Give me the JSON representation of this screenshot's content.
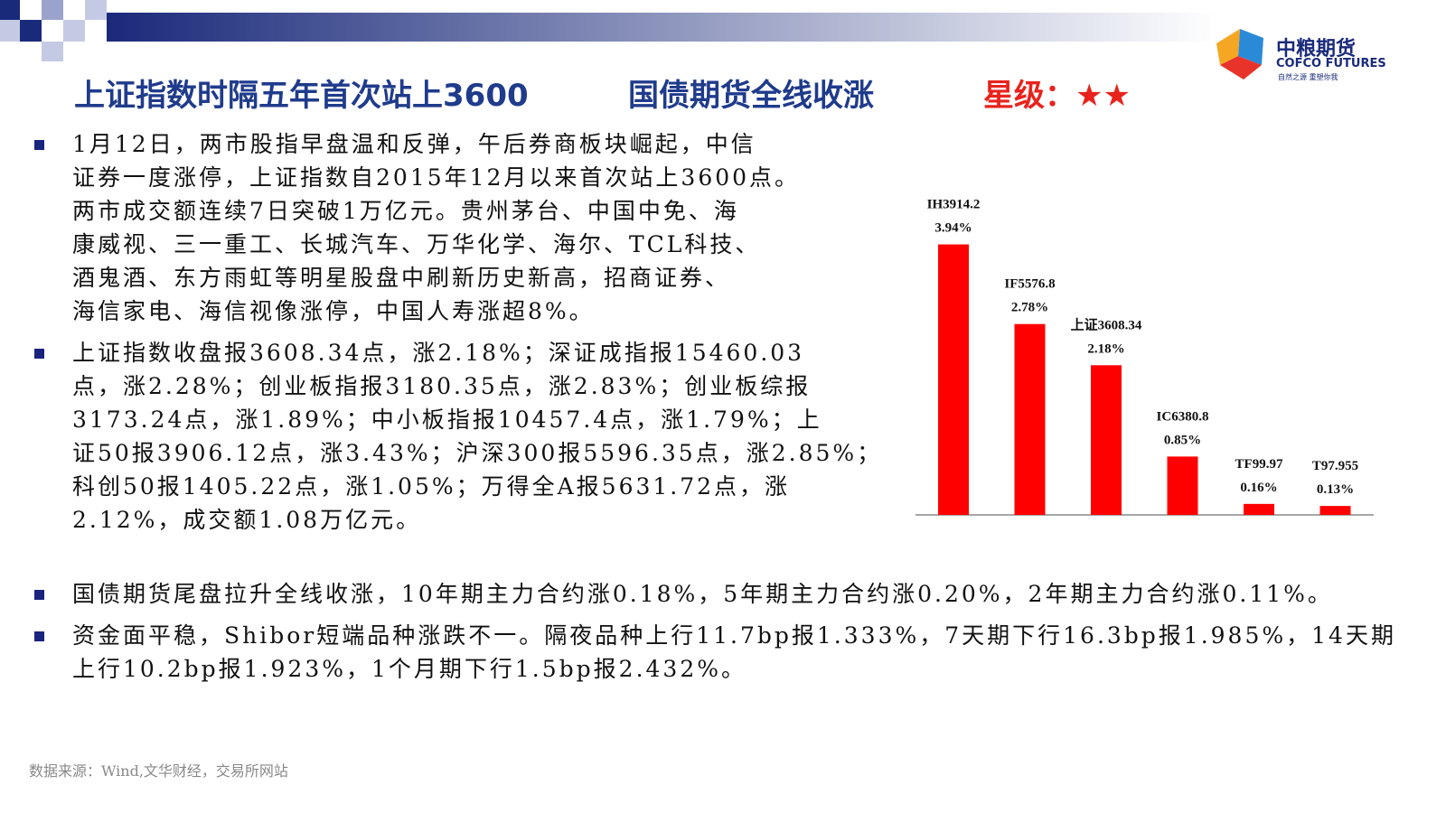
{
  "header": {
    "title_parts": [
      "上证指数时隔五年首次站上3600",
      "国债期货全线收涨",
      "星级：★★"
    ],
    "logo": {
      "name": "中粮期货",
      "english": "COFCO FUTURES",
      "tagline": "自然之源 重塑你我"
    }
  },
  "bullets": [
    [
      "1月12日，两市股指早盘温和反弹，午后券商板块崛起，中信",
      "证券一度涨停，上证指数自2015年12月以来首次站上3600点。",
      "两市成交额连续7日突破1万亿元。贵州茅台、中国中免、海",
      "康威视、三一重工、长城汽车、万华化学、海尔、TCL科技、",
      "酒鬼酒、东方雨虹等明星股盘中刷新历史新高，招商证券、",
      "海信家电、海信视像涨停，中国人寿涨超8%。"
    ],
    [
      "上证指数收盘报3608.34点，涨2.18%；深证成指报15460.03",
      "点，涨2.28%；创业板指报3180.35点，涨2.83%；创业板综报",
      "3173.24点，涨1.89%；中小板指报10457.4点，涨1.79%；上",
      "证50报3906.12点，涨3.43%；沪深300报5596.35点，涨2.85%；",
      "科创50报1405.22点，涨1.05%；万得全A报5631.72点，涨",
      "2.12%，成交额1.08万亿元。"
    ],
    [
      "国债期货尾盘拉升全线收涨，10年期主力合约涨0.18%，5年期主力合约涨0.20%，2年期主力合约涨0.11%。"
    ],
    [
      "资金面平稳，Shibor短端品种涨跌不一。隔夜品种上行11.7bp报1.333%，7天期下行16.3bp报1.985%，14天期",
      "上行10.2bp报1.923%，1个月期下行1.5bp报2.432%。"
    ]
  ],
  "source": "数据来源：Wind,文华财经，交易所网站",
  "chart_data": {
    "type": "bar",
    "categories": [
      "IH3914.2",
      "IF5576.8",
      "上证3608.34",
      "IC6380.8",
      "TF99.97",
      "T97.955"
    ],
    "values": [
      3.94,
      2.78,
      2.18,
      0.85,
      0.16,
      0.13
    ],
    "value_labels": [
      "3.94%",
      "2.78%",
      "2.18%",
      "0.85%",
      "0.16%",
      "0.13%"
    ],
    "color": "#ff0000"
  }
}
